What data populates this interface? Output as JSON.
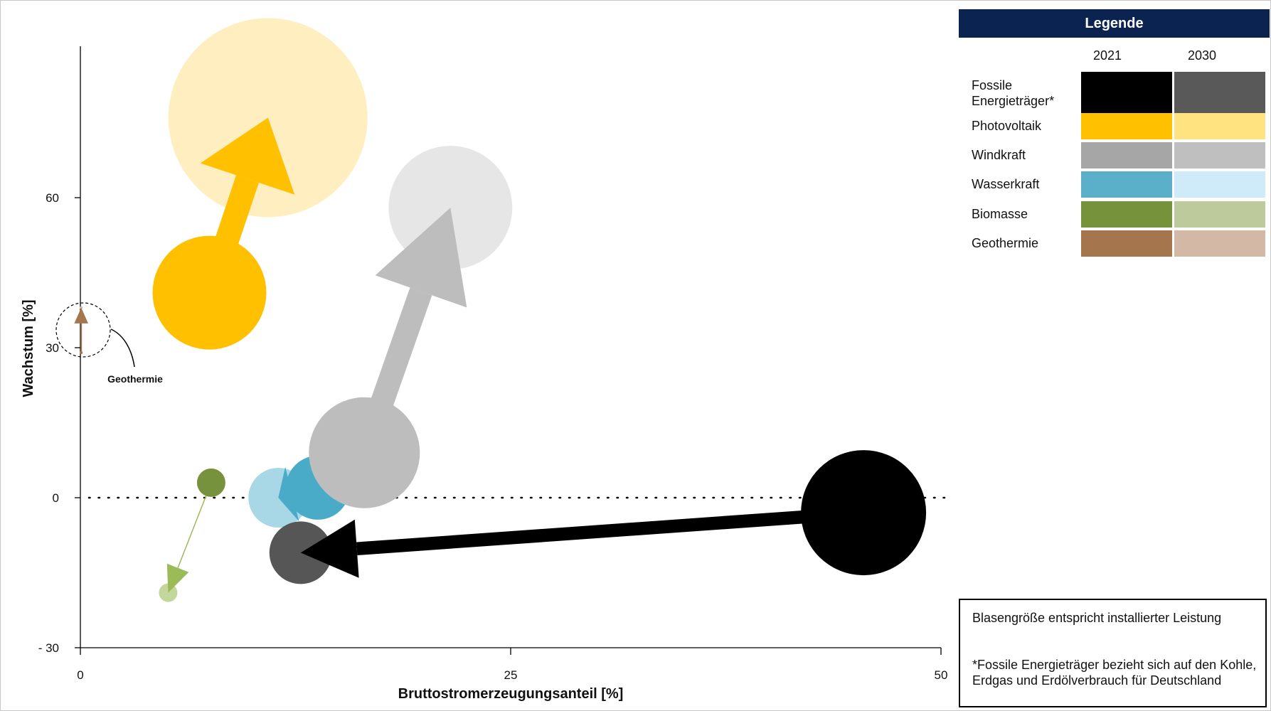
{
  "chart_data": {
    "type": "bubble",
    "xlabel": "Bruttostromerzeugungsanteil [%]",
    "ylabel": "Wachstum [%]",
    "xlim": [
      0,
      50
    ],
    "ylim": [
      -30,
      90
    ],
    "xticks": [
      0,
      25,
      50
    ],
    "yticks": [
      -30,
      0,
      30,
      60
    ],
    "ytick_labels": [
      "- 30",
      "0",
      "30",
      "60"
    ],
    "zero_line": "dotted",
    "grid": false,
    "bubble_size_meaning": "Blasengröße entspricht installierter Leistung",
    "series": [
      {
        "name": "Fossile Energieträger*",
        "from": {
          "x": 45.5,
          "y": -3,
          "size": 88
        },
        "to": {
          "x": 12.8,
          "y": -11,
          "size": 44
        },
        "color_2021": "#000000",
        "color_2030": "#565656"
      },
      {
        "name": "Photovoltaik",
        "from": {
          "x": 7.5,
          "y": 41,
          "size": 80
        },
        "to": {
          "x": 10.9,
          "y": 76,
          "size": 140
        },
        "color_2021": "#ffc000",
        "color_2030": "#ffefc0"
      },
      {
        "name": "Windkraft",
        "from": {
          "x": 16.5,
          "y": 9,
          "size": 78
        },
        "to": {
          "x": 21.5,
          "y": 58,
          "size": 87
        },
        "color_2021": "#bdbdbd",
        "color_2030": "#e6e6e6"
      },
      {
        "name": "Wasserkraft",
        "from": {
          "x": 13.8,
          "y": 2,
          "size": 45
        },
        "to": {
          "x": 11.5,
          "y": 0,
          "size": 42
        },
        "color_2021": "#4aabc9",
        "color_2030": "#a8d7e6"
      },
      {
        "name": "Biomasse",
        "from": {
          "x": 7.6,
          "y": 3,
          "size": 20
        },
        "to": {
          "x": 5.1,
          "y": -19,
          "size": 13
        },
        "color_2021": "#76923c",
        "color_2030": "#c3d69b"
      },
      {
        "name": "Geothermie",
        "from": {
          "x": 0.05,
          "y": 29,
          "size": 2
        },
        "to": {
          "x": 0.05,
          "y": 38,
          "size": 2
        },
        "color_2021": "#a5764d",
        "color_2030": "#d5b9a5"
      }
    ],
    "annotations": [
      {
        "text": "Geothermie"
      }
    ]
  },
  "legend": {
    "title": "Legende",
    "year_2021": "2021",
    "year_2030": "2030",
    "rows": [
      {
        "label": "Fossile Energieträger*",
        "color_2021": "#000000",
        "color_2030": "#595959"
      },
      {
        "label": "Photovoltaik",
        "color_2021": "#ffc000",
        "color_2030": "#ffe380"
      },
      {
        "label": "Windkraft",
        "color_2021": "#a6a6a6",
        "color_2030": "#bfbfbf"
      },
      {
        "label": "Wasserkraft",
        "color_2021": "#5ab0c8",
        "color_2030": "#cfeaf8"
      },
      {
        "label": "Biomasse",
        "color_2021": "#76933c",
        "color_2030": "#bcca9c"
      },
      {
        "label": "Geothermie",
        "color_2021": "#a5764d",
        "color_2030": "#d3b8a5"
      }
    ]
  },
  "notes": {
    "size_note": "Blasengröße entspricht installierter Leistung",
    "fossil_note": "*Fossile Energieträger bezieht sich auf den Kohle, Erdgas und Erdölverbrauch für Deutschland"
  }
}
